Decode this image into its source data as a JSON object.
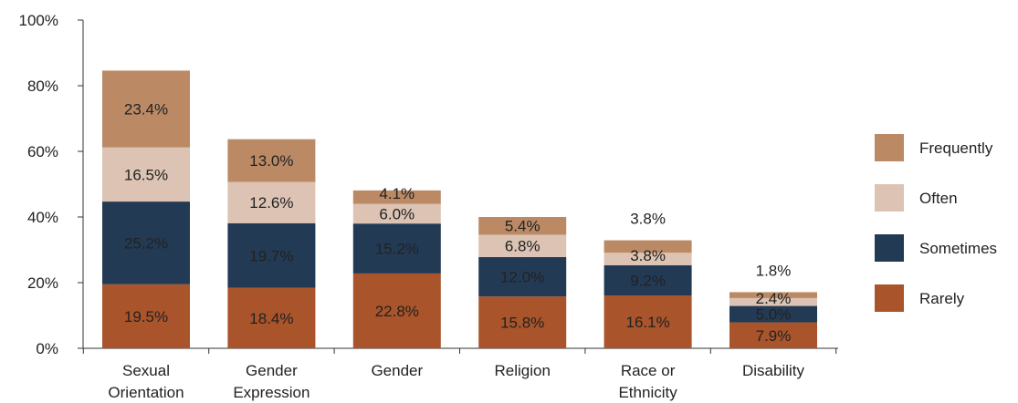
{
  "chart_data": {
    "type": "bar",
    "stacked": true,
    "categories": [
      [
        "Sexual",
        "Orientation"
      ],
      [
        "Gender",
        "Expression"
      ],
      [
        "Gender"
      ],
      [
        "Religion"
      ],
      [
        "Race or",
        "Ethnicity"
      ],
      [
        "Disability"
      ]
    ],
    "series": [
      {
        "name": "Rarely",
        "color": "#a9542a",
        "label_color": "#ffffff",
        "values": [
          19.5,
          18.4,
          22.8,
          15.8,
          16.1,
          7.9
        ],
        "labels": [
          "19.5%",
          "18.4%",
          "22.8%",
          "15.8%",
          "16.1%",
          "7.9%"
        ]
      },
      {
        "name": "Sometimes",
        "color": "#233a54",
        "label_color": "#ffffff",
        "values": [
          25.2,
          19.7,
          15.2,
          12.0,
          9.2,
          5.0
        ],
        "labels": [
          "25.2%",
          "19.7%",
          "15.2%",
          "12.0%",
          "9.2%",
          "5.0%"
        ]
      },
      {
        "name": "Often",
        "color": "#dcc3b3",
        "label_color": "#222222",
        "values": [
          16.5,
          12.6,
          6.0,
          6.8,
          3.8,
          2.4
        ],
        "labels": [
          "16.5%",
          "12.6%",
          "6.0%",
          "6.8%",
          "3.8%",
          "2.4%"
        ]
      },
      {
        "name": "Frequently",
        "color": "#bb8a65",
        "label_color": "#222222",
        "values": [
          23.4,
          13.0,
          4.1,
          5.4,
          3.8,
          1.8
        ],
        "labels": [
          "23.4%",
          "13.0%",
          "4.1%",
          "5.4%",
          "3.8%",
          "1.8%"
        ]
      }
    ],
    "yaxis": {
      "ticks": [
        0,
        20,
        40,
        60,
        80,
        100
      ],
      "tick_labels": [
        "0%",
        "20%",
        "40%",
        "60%",
        "80%",
        "100%"
      ],
      "ylim": [
        0,
        100
      ]
    },
    "title": "",
    "xlabel": "",
    "ylabel": "",
    "grid": false,
    "legend": {
      "placement": "right",
      "order": [
        "Frequently",
        "Often",
        "Sometimes",
        "Rarely"
      ]
    }
  }
}
